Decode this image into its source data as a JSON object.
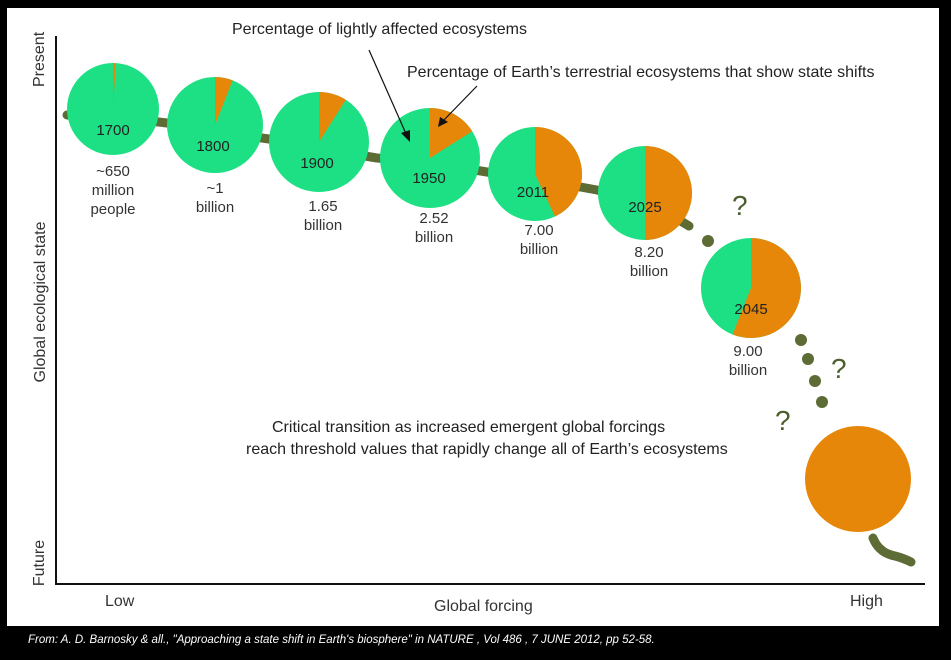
{
  "colors": {
    "lightly_affected": "#1de084",
    "state_shift": "#e6870a",
    "trajectory": "#5d6b35",
    "axis": "#111111"
  },
  "axes": {
    "y_title": "Global ecological state",
    "y_top": "Present",
    "y_bottom": "Future",
    "x_title": "Global forcing",
    "x_left": "Low",
    "x_right": "High"
  },
  "annotations": {
    "lightly_affected": "Percentage of lightly affected ecosystems",
    "state_shifts": "Percentage of Earth’s terrestrial ecosystems that show state shifts",
    "critical_line1": "Critical transition as increased emergent global forcings",
    "critical_line2": "reach threshold values that rapidly change  all of Earth’s ecosystems",
    "question_mark": "?"
  },
  "pies": [
    {
      "year": "1700",
      "population": [
        "~650",
        "million",
        "people"
      ],
      "shift_fraction": 0.01
    },
    {
      "year": "1800",
      "population": [
        "~1",
        "billion"
      ],
      "shift_fraction": 0.06
    },
    {
      "year": "1900",
      "population": [
        "1.65",
        "billion"
      ],
      "shift_fraction": 0.09
    },
    {
      "year": "1950",
      "population": [
        "2.52",
        "billion"
      ],
      "shift_fraction": 0.16
    },
    {
      "year": "2011",
      "population": [
        "7.00",
        "billion"
      ],
      "shift_fraction": 0.43
    },
    {
      "year": "2025",
      "population": [
        "8.20",
        "billion"
      ],
      "shift_fraction": 0.5
    },
    {
      "year": "2045",
      "population": [
        "9.00",
        "billion"
      ],
      "shift_fraction": 0.56
    },
    {
      "year": "",
      "population": [],
      "shift_fraction": 1.0
    }
  ],
  "citation": "From:  A. D. Barnosky & all., \"Approaching a state shift in Earth's biosphere\" in NATURE , Vol 486 , 7 JUNE 2012, pp 52-58."
}
